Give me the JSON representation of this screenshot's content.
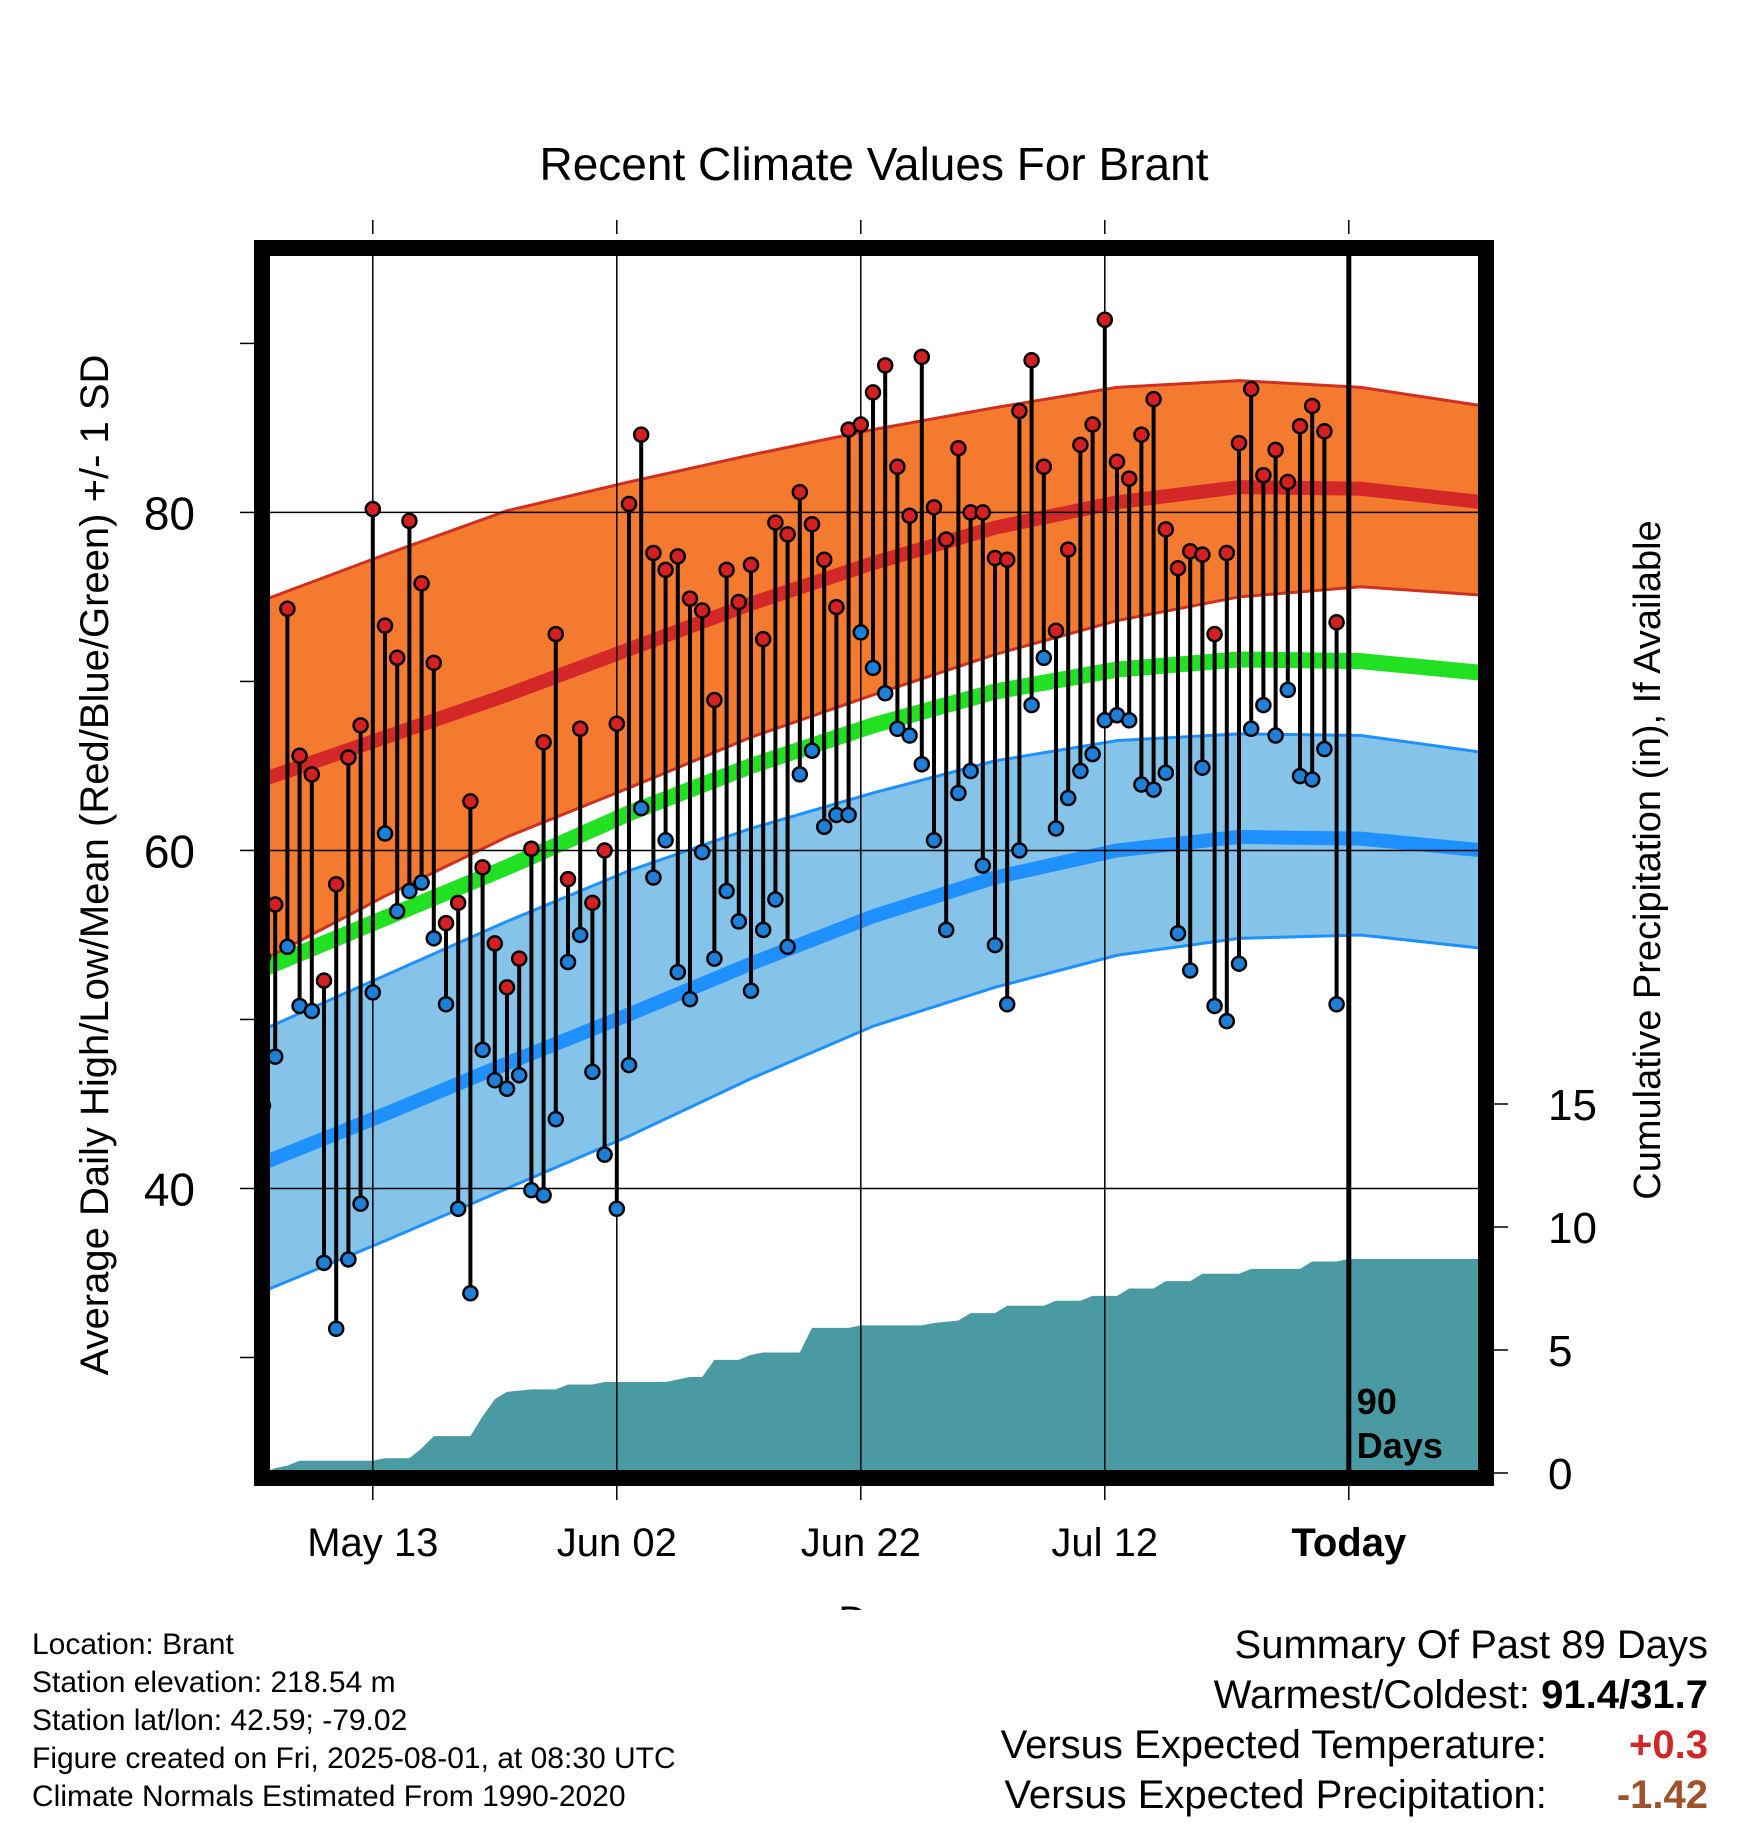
{
  "chart_data": {
    "type": "line",
    "title": "Recent Climate Values For Brant",
    "xlabel": "Day",
    "ylabel": "Average Daily High/Low/Mean (Red/Blue/Green) +/- 1 SD",
    "y2label": "Cumulative Precipitation (in), If Available",
    "x_ticks": [
      "May 13",
      "Jun 02",
      "Jun 22",
      "Jul 12",
      "Today"
    ],
    "y_ticks": [
      40,
      60,
      80
    ],
    "y2_ticks": [
      0,
      5,
      10,
      15
    ],
    "ylim": [
      23,
      96
    ],
    "y2lim": [
      0,
      50
    ],
    "grid": true,
    "today_marker": {
      "line1": "90",
      "line2": "Days"
    },
    "colors": {
      "high_band": "#f47a30",
      "high_line": "#d42828",
      "low_band": "#85c4e8",
      "low_line": "#1e90ff",
      "mean_line": "#22e022",
      "precip": "#4a9aa4",
      "high_dot": "#d42020",
      "low_dot": "#1e7fd8"
    },
    "normal_high": [
      {
        "day": 0,
        "value": 64.2
      },
      {
        "day": 10,
        "value": 66.7
      },
      {
        "day": 20,
        "value": 69.2
      },
      {
        "day": 30,
        "value": 71.9
      },
      {
        "day": 40,
        "value": 74.6
      },
      {
        "day": 50,
        "value": 77.0
      },
      {
        "day": 60,
        "value": 79.1
      },
      {
        "day": 70,
        "value": 80.6
      },
      {
        "day": 80,
        "value": 81.5
      },
      {
        "day": 90,
        "value": 81.4
      },
      {
        "day": 100,
        "value": 80.6
      }
    ],
    "normal_high_band": [
      {
        "day": 0,
        "lo": 53.5,
        "hi": 74.8
      },
      {
        "day": 10,
        "lo": 57.3,
        "hi": 77.5
      },
      {
        "day": 20,
        "lo": 60.8,
        "hi": 80.1
      },
      {
        "day": 30,
        "lo": 63.7,
        "hi": 81.8
      },
      {
        "day": 40,
        "lo": 66.7,
        "hi": 83.4
      },
      {
        "day": 50,
        "lo": 69.2,
        "hi": 84.9
      },
      {
        "day": 60,
        "lo": 71.6,
        "hi": 86.2
      },
      {
        "day": 70,
        "lo": 73.6,
        "hi": 87.4
      },
      {
        "day": 80,
        "lo": 75.0,
        "hi": 87.8
      },
      {
        "day": 90,
        "lo": 75.6,
        "hi": 87.4
      },
      {
        "day": 100,
        "lo": 75.1,
        "hi": 86.3
      }
    ],
    "normal_mean": [
      {
        "day": 0,
        "value": 53.0
      },
      {
        "day": 10,
        "value": 56.0
      },
      {
        "day": 20,
        "value": 59.0
      },
      {
        "day": 30,
        "value": 62.2
      },
      {
        "day": 40,
        "value": 65.0
      },
      {
        "day": 50,
        "value": 67.4
      },
      {
        "day": 60,
        "value": 69.4
      },
      {
        "day": 70,
        "value": 70.7
      },
      {
        "day": 80,
        "value": 71.3
      },
      {
        "day": 90,
        "value": 71.2
      },
      {
        "day": 100,
        "value": 70.5
      }
    ],
    "normal_low": [
      {
        "day": 0,
        "value": 41.5
      },
      {
        "day": 10,
        "value": 44.4
      },
      {
        "day": 20,
        "value": 47.4
      },
      {
        "day": 30,
        "value": 50.3
      },
      {
        "day": 40,
        "value": 53.3
      },
      {
        "day": 50,
        "value": 56.1
      },
      {
        "day": 60,
        "value": 58.4
      },
      {
        "day": 70,
        "value": 60.0
      },
      {
        "day": 80,
        "value": 60.8
      },
      {
        "day": 90,
        "value": 60.7
      },
      {
        "day": 100,
        "value": 60.0
      }
    ],
    "normal_low_band": [
      {
        "day": 0,
        "lo": 33.9,
        "hi": 49.4
      },
      {
        "day": 10,
        "lo": 36.9,
        "hi": 52.6
      },
      {
        "day": 20,
        "lo": 40.0,
        "hi": 55.8
      },
      {
        "day": 30,
        "lo": 43.1,
        "hi": 58.8
      },
      {
        "day": 40,
        "lo": 46.5,
        "hi": 61.3
      },
      {
        "day": 50,
        "lo": 49.6,
        "hi": 63.4
      },
      {
        "day": 60,
        "lo": 51.9,
        "hi": 65.3
      },
      {
        "day": 70,
        "lo": 53.8,
        "hi": 66.5
      },
      {
        "day": 80,
        "lo": 54.8,
        "hi": 66.9
      },
      {
        "day": 90,
        "lo": 55.0,
        "hi": 66.8
      },
      {
        "day": 100,
        "lo": 54.2,
        "hi": 65.8
      }
    ],
    "daily_highs": [
      53.7,
      56.8,
      74.3,
      65.6,
      64.5,
      52.3,
      58.0,
      65.5,
      67.4,
      80.2,
      73.3,
      71.4,
      79.5,
      75.8,
      71.1,
      55.7,
      56.9,
      62.9,
      59.0,
      54.5,
      51.9,
      53.6,
      60.1,
      66.4,
      72.8,
      58.3,
      67.2,
      56.9,
      60.0,
      67.5,
      80.5,
      84.6,
      77.6,
      76.6,
      77.4,
      74.9,
      74.2,
      68.9,
      76.6,
      74.7,
      76.9,
      72.5,
      79.4,
      78.7,
      81.2,
      79.3,
      77.2,
      74.4,
      84.9,
      85.2,
      87.1,
      88.7,
      82.7,
      79.8,
      89.2,
      80.3,
      78.4,
      83.8,
      80.0,
      80.0,
      77.3,
      77.2,
      86.0,
      89.0,
      82.7,
      73.0,
      77.8,
      84.0,
      85.2,
      91.4,
      83.0,
      82.0,
      84.6,
      86.7,
      79.0,
      76.7,
      77.7,
      77.5,
      72.8,
      77.6,
      84.1,
      87.3,
      82.2,
      83.7,
      81.8,
      85.1,
      86.3,
      84.8,
      73.5
    ],
    "daily_lows": [
      44.9,
      47.8,
      54.3,
      50.8,
      50.5,
      35.6,
      31.7,
      35.8,
      39.1,
      51.6,
      61.0,
      56.4,
      57.6,
      58.1,
      54.8,
      50.9,
      38.8,
      33.8,
      48.2,
      46.4,
      45.9,
      46.7,
      39.9,
      39.6,
      44.1,
      53.4,
      55.0,
      46.9,
      42.0,
      38.8,
      47.3,
      62.5,
      58.4,
      60.6,
      52.8,
      51.2,
      59.9,
      53.6,
      57.6,
      55.8,
      51.7,
      55.3,
      57.1,
      54.3,
      64.5,
      65.9,
      61.4,
      62.1,
      62.1,
      72.9,
      70.8,
      69.3,
      67.2,
      66.8,
      65.1,
      60.6,
      55.3,
      63.4,
      64.7,
      59.1,
      54.4,
      50.9,
      60.0,
      68.6,
      71.4,
      61.3,
      63.1,
      64.7,
      65.7,
      67.7,
      68.0,
      67.7,
      63.9,
      63.6,
      64.6,
      55.1,
      52.9,
      64.9,
      50.8,
      49.9,
      53.3,
      67.2,
      68.6,
      66.8,
      69.5,
      64.4,
      64.2,
      66.0,
      50.9
    ],
    "precip_cumulative": [
      {
        "day": 0,
        "value": 0.0
      },
      {
        "day": 1,
        "value": 0.2
      },
      {
        "day": 2,
        "value": 0.3
      },
      {
        "day": 3,
        "value": 0.5
      },
      {
        "day": 9,
        "value": 0.5
      },
      {
        "day": 10,
        "value": 0.6
      },
      {
        "day": 12,
        "value": 0.6
      },
      {
        "day": 13,
        "value": 1.0
      },
      {
        "day": 14,
        "value": 1.5
      },
      {
        "day": 17,
        "value": 1.5
      },
      {
        "day": 18,
        "value": 2.3
      },
      {
        "day": 19,
        "value": 3.0
      },
      {
        "day": 20,
        "value": 3.3
      },
      {
        "day": 22,
        "value": 3.4
      },
      {
        "day": 24,
        "value": 3.4
      },
      {
        "day": 25,
        "value": 3.6
      },
      {
        "day": 27,
        "value": 3.6
      },
      {
        "day": 28,
        "value": 3.7
      },
      {
        "day": 30,
        "value": 3.7
      },
      {
        "day": 33,
        "value": 3.7
      },
      {
        "day": 34,
        "value": 3.8
      },
      {
        "day": 35,
        "value": 3.9
      },
      {
        "day": 36,
        "value": 3.9
      },
      {
        "day": 37,
        "value": 4.6
      },
      {
        "day": 39,
        "value": 4.6
      },
      {
        "day": 40,
        "value": 4.8
      },
      {
        "day": 41,
        "value": 4.9
      },
      {
        "day": 44,
        "value": 4.9
      },
      {
        "day": 45,
        "value": 5.9
      },
      {
        "day": 48,
        "value": 5.9
      },
      {
        "day": 49,
        "value": 6.0
      },
      {
        "day": 54,
        "value": 6.0
      },
      {
        "day": 55,
        "value": 6.1
      },
      {
        "day": 57,
        "value": 6.2
      },
      {
        "day": 58,
        "value": 6.5
      },
      {
        "day": 60,
        "value": 6.5
      },
      {
        "day": 61,
        "value": 6.8
      },
      {
        "day": 64,
        "value": 6.8
      },
      {
        "day": 65,
        "value": 7.0
      },
      {
        "day": 67,
        "value": 7.0
      },
      {
        "day": 68,
        "value": 7.2
      },
      {
        "day": 70,
        "value": 7.2
      },
      {
        "day": 71,
        "value": 7.5
      },
      {
        "day": 73,
        "value": 7.5
      },
      {
        "day": 74,
        "value": 7.8
      },
      {
        "day": 76,
        "value": 7.8
      },
      {
        "day": 77,
        "value": 8.1
      },
      {
        "day": 80,
        "value": 8.1
      },
      {
        "day": 81,
        "value": 8.3
      },
      {
        "day": 85,
        "value": 8.3
      },
      {
        "day": 86,
        "value": 8.6
      },
      {
        "day": 88,
        "value": 8.6
      },
      {
        "day": 89,
        "value": 8.7
      },
      {
        "day": 90,
        "value": 8.7
      },
      {
        "day": 100,
        "value": 8.7
      }
    ]
  },
  "footer": {
    "location": "Location: Brant",
    "elevation": "Station elevation: 218.54 m",
    "latlon": "Station lat/lon: 42.59; -79.02",
    "created": "Figure created on Fri, 2025-08-01, at 08:30 UTC",
    "normals": "Climate Normals Estimated From 1990-2020"
  },
  "summary": {
    "title": "Summary Of Past 89 Days",
    "warm_label": "Warmest/Coldest:",
    "warm_value": "91.4/31.7",
    "temp_label": "Versus Expected Temperature:",
    "temp_value": "+0.3",
    "prec_label": "Versus Expected Precipitation:",
    "prec_value": "-1.42"
  }
}
